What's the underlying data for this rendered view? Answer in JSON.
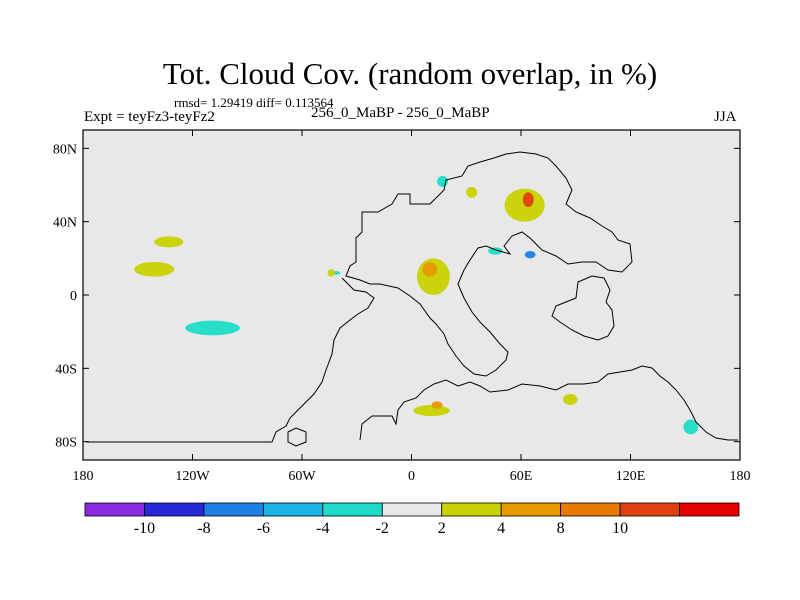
{
  "chart_data": {
    "type": "contour-map",
    "title": "Tot. Cloud Cov. (random overlap, in %)",
    "stats_text": "rmsd= 1.29419  diff= 0.113564",
    "left_label": "Expt = teyFz3-teyFz2",
    "center_label": "256_0_MaBP - 256_0_MaBP",
    "right_label": "JJA",
    "x_axis": {
      "range": [
        -180,
        180
      ],
      "ticks": [
        {
          "value": -180,
          "label": "180"
        },
        {
          "value": -120,
          "label": "120W"
        },
        {
          "value": -60,
          "label": "60W"
        },
        {
          "value": 0,
          "label": "0"
        },
        {
          "value": 60,
          "label": "60E"
        },
        {
          "value": 120,
          "label": "120E"
        },
        {
          "value": 180,
          "label": "180"
        }
      ]
    },
    "y_axis": {
      "range": [
        -90,
        90
      ],
      "ticks": [
        {
          "value": 80,
          "label": "80N"
        },
        {
          "value": 40,
          "label": "40N"
        },
        {
          "value": 0,
          "label": "0"
        },
        {
          "value": -40,
          "label": "40S"
        },
        {
          "value": -80,
          "label": "80S"
        }
      ]
    },
    "colorbar": {
      "colors": [
        "#8a2be2",
        "#2828d8",
        "#1e7fe6",
        "#1ab4e6",
        "#1edcc8",
        "#e8e8e8",
        "#c8d200",
        "#e69a00",
        "#e87a00",
        "#e04010",
        "#e80000"
      ],
      "labels": [
        "-10",
        "-8",
        "-6",
        "-4",
        "-2",
        "2",
        "4",
        "8",
        "10"
      ]
    },
    "anomalies": [
      {
        "name": "tropical-pacific-positive",
        "lon": -141,
        "lat": 14,
        "rlon": 11,
        "rlat": 4,
        "level": 4
      },
      {
        "name": "pacific-small-positive",
        "lon": -133,
        "lat": 29,
        "rlon": 8,
        "rlat": 3,
        "level": 4
      },
      {
        "name": "south-pacific-negative",
        "lon": -109,
        "lat": -18,
        "rlon": 15,
        "rlat": 4,
        "level": -2
      },
      {
        "name": "africa-positive",
        "lon": 12,
        "lat": 10,
        "rlon": 9,
        "rlat": 10,
        "level": 4
      },
      {
        "name": "africa-hotspot",
        "lon": 10,
        "lat": 14,
        "rlon": 4,
        "rlat": 4,
        "level": 8
      },
      {
        "name": "asia-positive",
        "lon": 62,
        "lat": 49,
        "rlon": 11,
        "rlat": 9,
        "level": 4
      },
      {
        "name": "asia-hotspot",
        "lon": 64,
        "lat": 52,
        "rlon": 3,
        "rlat": 4,
        "level": 10
      },
      {
        "name": "himalaya-negative",
        "lon": 65,
        "lat": 22,
        "rlon": 3,
        "rlat": 2,
        "level": -8
      },
      {
        "name": "arabia-negative",
        "lon": 46,
        "lat": 24,
        "rlon": 4,
        "rlat": 2,
        "level": -2
      },
      {
        "name": "arctic-negative",
        "lon": 17,
        "lat": 62,
        "rlon": 3,
        "rlat": 3,
        "level": -4
      },
      {
        "name": "siberia-positive",
        "lon": 33,
        "lat": 56,
        "rlon": 3,
        "rlat": 3,
        "level": 4
      },
      {
        "name": "southern-ocean-positive",
        "lon": 11,
        "lat": -63,
        "rlon": 10,
        "rlat": 3,
        "level": 4
      },
      {
        "name": "southern-ocean-hotspot",
        "lon": 14,
        "lat": -60,
        "rlon": 3,
        "rlat": 2,
        "level": 8
      },
      {
        "name": "antarctic-negative",
        "lon": 153,
        "lat": -72,
        "rlon": 4,
        "rlat": 4,
        "level": -2
      },
      {
        "name": "southern-ocean-positive-2",
        "lon": 87,
        "lat": -57,
        "rlon": 4,
        "rlat": 3,
        "level": 4
      },
      {
        "name": "atlantic-small-negative",
        "lon": -41,
        "lat": 12,
        "rlon": 2,
        "rlat": 1,
        "level": -2
      },
      {
        "name": "atlantic-small-positive",
        "lon": -44,
        "lat": 12,
        "rlon": 2,
        "rlat": 2,
        "level": 4
      }
    ]
  }
}
